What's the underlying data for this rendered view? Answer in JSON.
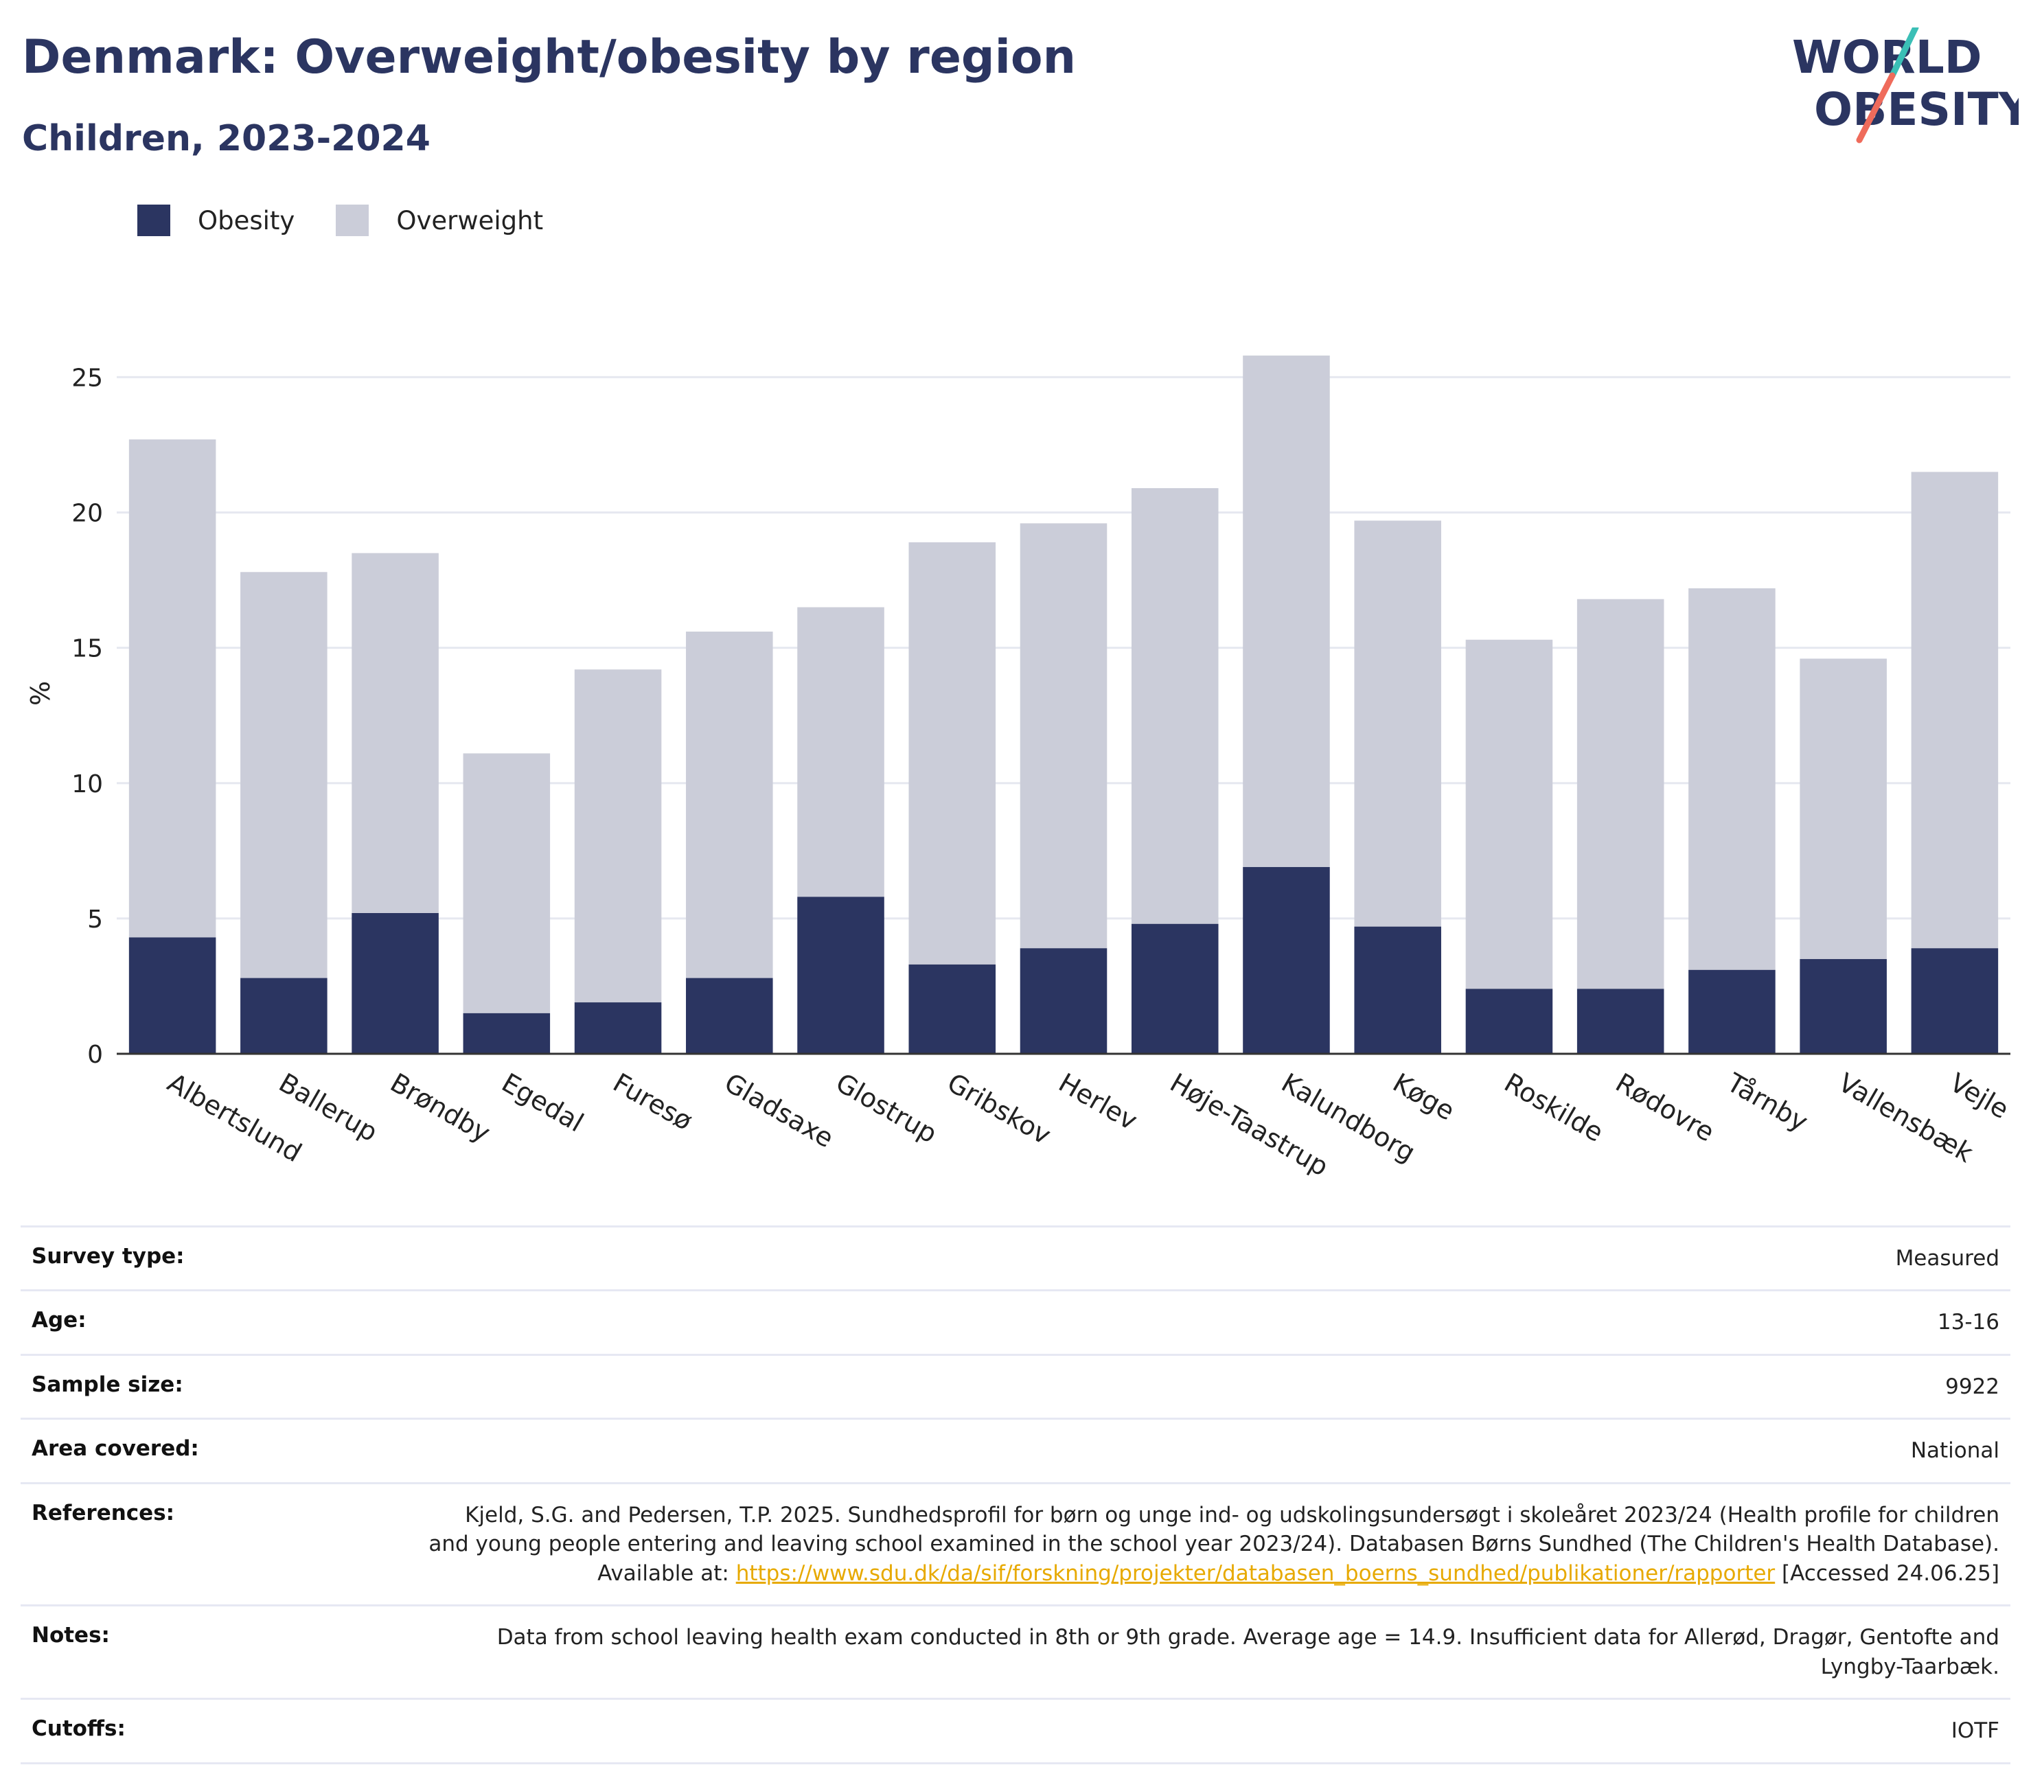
{
  "header": {
    "title": "Denmark: Overweight/obesity by region",
    "subtitle": "Children, 2023-2024",
    "logo_line1": "WORLD",
    "logo_line2": "OBESITY"
  },
  "colors": {
    "obesity": "#2b3561",
    "overweight": "#cbcdd9",
    "grid": "#e6e8f0",
    "title": "#2b3561",
    "link": "#e7a900",
    "logo_teal": "#3bbfb6",
    "logo_coral": "#ef6b5b"
  },
  "chart_data": {
    "type": "bar",
    "stacked": true,
    "categories": [
      "Albertslund",
      "Ballerup",
      "Brøndby",
      "Egedal",
      "Furesø",
      "Gladsaxe",
      "Glostrup",
      "Gribskov",
      "Herlev",
      "Høje-Taastrup",
      "Kalundborg",
      "Køge",
      "Roskilde",
      "Rødovre",
      "Tårnby",
      "Vallensbæk",
      "Vejle"
    ],
    "series": [
      {
        "name": "Obesity",
        "values": [
          4.3,
          2.8,
          5.2,
          1.5,
          1.9,
          2.8,
          5.8,
          3.3,
          3.9,
          4.8,
          6.9,
          4.7,
          2.4,
          2.4,
          3.1,
          3.5,
          3.9
        ]
      },
      {
        "name": "Overweight",
        "values": [
          18.4,
          15.0,
          13.3,
          9.6,
          12.3,
          12.8,
          10.7,
          15.6,
          15.7,
          16.1,
          18.9,
          15.0,
          12.9,
          14.4,
          14.1,
          11.1,
          17.6
        ]
      }
    ],
    "ylabel": "%",
    "xlabel": "",
    "ylim": [
      0,
      26
    ],
    "yticks": [
      0,
      5,
      10,
      15,
      20,
      25
    ],
    "grid": true,
    "legend_position": "top-left"
  },
  "meta": {
    "survey_type": {
      "label": "Survey type:",
      "value": "Measured"
    },
    "age": {
      "label": "Age:",
      "value": "13-16"
    },
    "sample_size": {
      "label": "Sample size:",
      "value": "9922"
    },
    "area": {
      "label": "Area covered:",
      "value": "National"
    },
    "references": {
      "label": "References:",
      "text": "Kjeld, S.G. and Pedersen, T.P. 2025. Sundhedsprofil for børn og unge ind- og udskolingsundersøgt i skoleåret 2023/24 (Health profile for children and young people entering and leaving school examined in the school year 2023/24). Databasen Børns Sundhed (The Children's Health Database). Available at:",
      "link": "https://www.sdu.dk/da/sif/forskning/projekter/databasen_boerns_sundhed/publikationer/rapporter",
      "accessed": "[Accessed 24.06.25]"
    },
    "notes": {
      "label": "Notes:",
      "value": "Data from school leaving health exam conducted in 8th or 9th grade. Average age = 14.9. Insufficient data for Allerød, Dragør, Gentofte and Lyngby-Taarbæk."
    },
    "cutoffs": {
      "label": "Cutoffs:",
      "value": "IOTF"
    }
  }
}
